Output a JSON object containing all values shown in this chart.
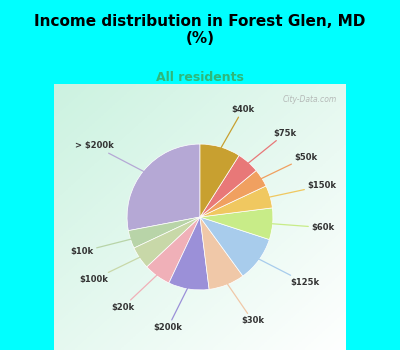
{
  "title": "Income distribution in Forest Glen, MD\n(%)",
  "subtitle": "All residents",
  "title_color": "#000000",
  "subtitle_color": "#2eb87a",
  "background_cyan": "#00ffff",
  "labels": [
    "> $200k",
    "$10k",
    "$100k",
    "$20k",
    "$200k",
    "$30k",
    "$125k",
    "$60k",
    "$150k",
    "$50k",
    "$75k",
    "$40k"
  ],
  "values": [
    28,
    4,
    5,
    6,
    9,
    8,
    10,
    7,
    5,
    4,
    5,
    9
  ],
  "colors": [
    "#b5a8d5",
    "#b8d4a8",
    "#c8d8a8",
    "#f0b0b8",
    "#9b90d8",
    "#f0c8a8",
    "#a8ccec",
    "#c8ec88",
    "#f0c860",
    "#f0a060",
    "#e87878",
    "#c8a030"
  ],
  "start_angle": 90
}
